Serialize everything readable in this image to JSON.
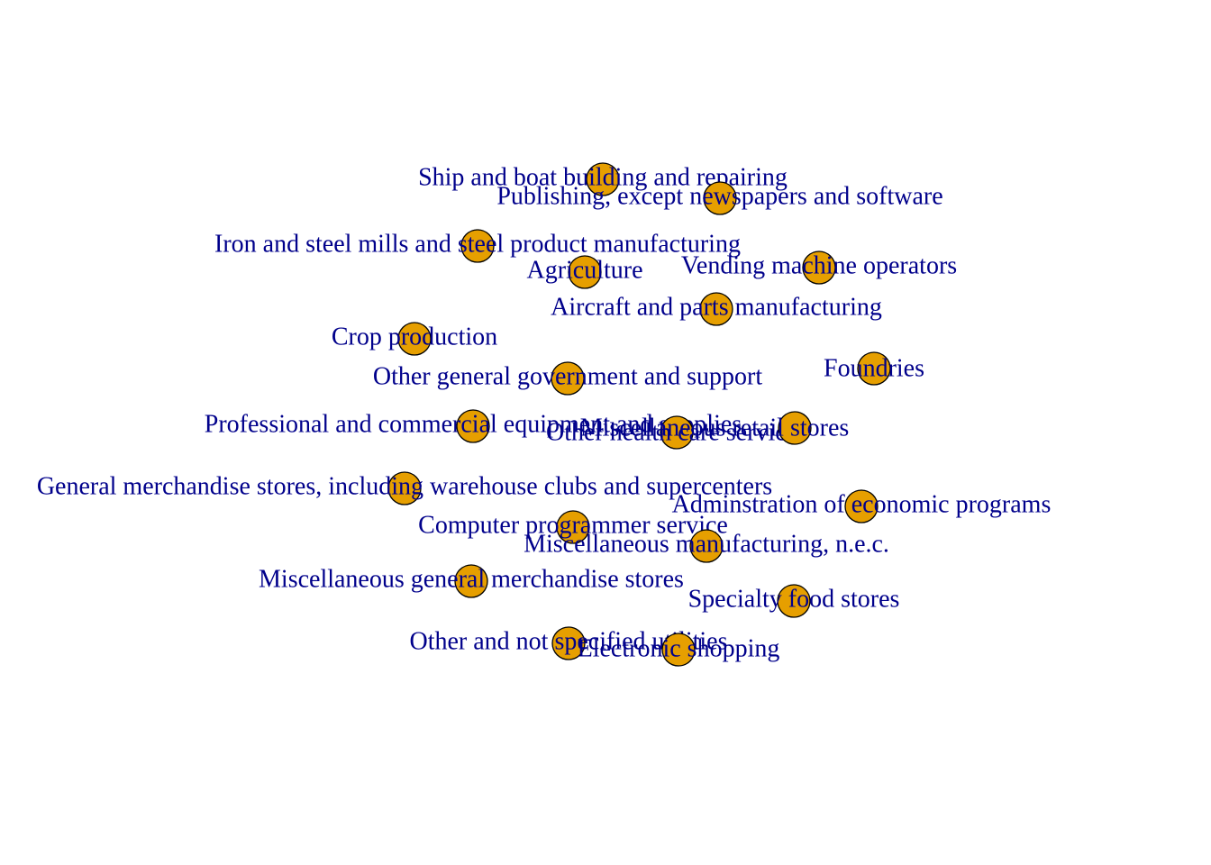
{
  "colors": {
    "node_fill": "#E69F00",
    "node_stroke": "#000000",
    "label": "#00008B",
    "background": "#FFFFFF"
  },
  "nodes": [
    {
      "id": "ship",
      "label": "Ship and boat building and repairing"
    },
    {
      "id": "publishing",
      "label": "Publishing, except newspapers and software"
    },
    {
      "id": "iron",
      "label": "Iron and steel mills and steel product manufacturing"
    },
    {
      "id": "agriculture",
      "label": "Agriculture"
    },
    {
      "id": "vending",
      "label": "Vending machine operators"
    },
    {
      "id": "aircraft",
      "label": "Aircraft and parts manufacturing"
    },
    {
      "id": "crop",
      "label": "Crop production"
    },
    {
      "id": "foundries",
      "label": "Foundries"
    },
    {
      "id": "govsupport",
      "label": "Other general government and support"
    },
    {
      "id": "professional",
      "label": "Professional and commercial equipment and supplies"
    },
    {
      "id": "healthcare",
      "label": "Other health care services"
    },
    {
      "id": "miscretail",
      "label": "Miscellaneous retail stores"
    },
    {
      "id": "generalmerch",
      "label": "General merchandise stores, including warehouse clubs and supercenters"
    },
    {
      "id": "econprog",
      "label": "Adminstration of economic programs"
    },
    {
      "id": "computer",
      "label": "Computer programmer service"
    },
    {
      "id": "miscmfg",
      "label": "Miscellaneous manufacturing, n.e.c."
    },
    {
      "id": "miscgenmerch",
      "label": "Miscellaneous general merchandise stores"
    },
    {
      "id": "specialty",
      "label": "Specialty food stores"
    },
    {
      "id": "utilities",
      "label": "Other and not specified utilities"
    },
    {
      "id": "electronic",
      "label": "Electronic shopping"
    }
  ]
}
